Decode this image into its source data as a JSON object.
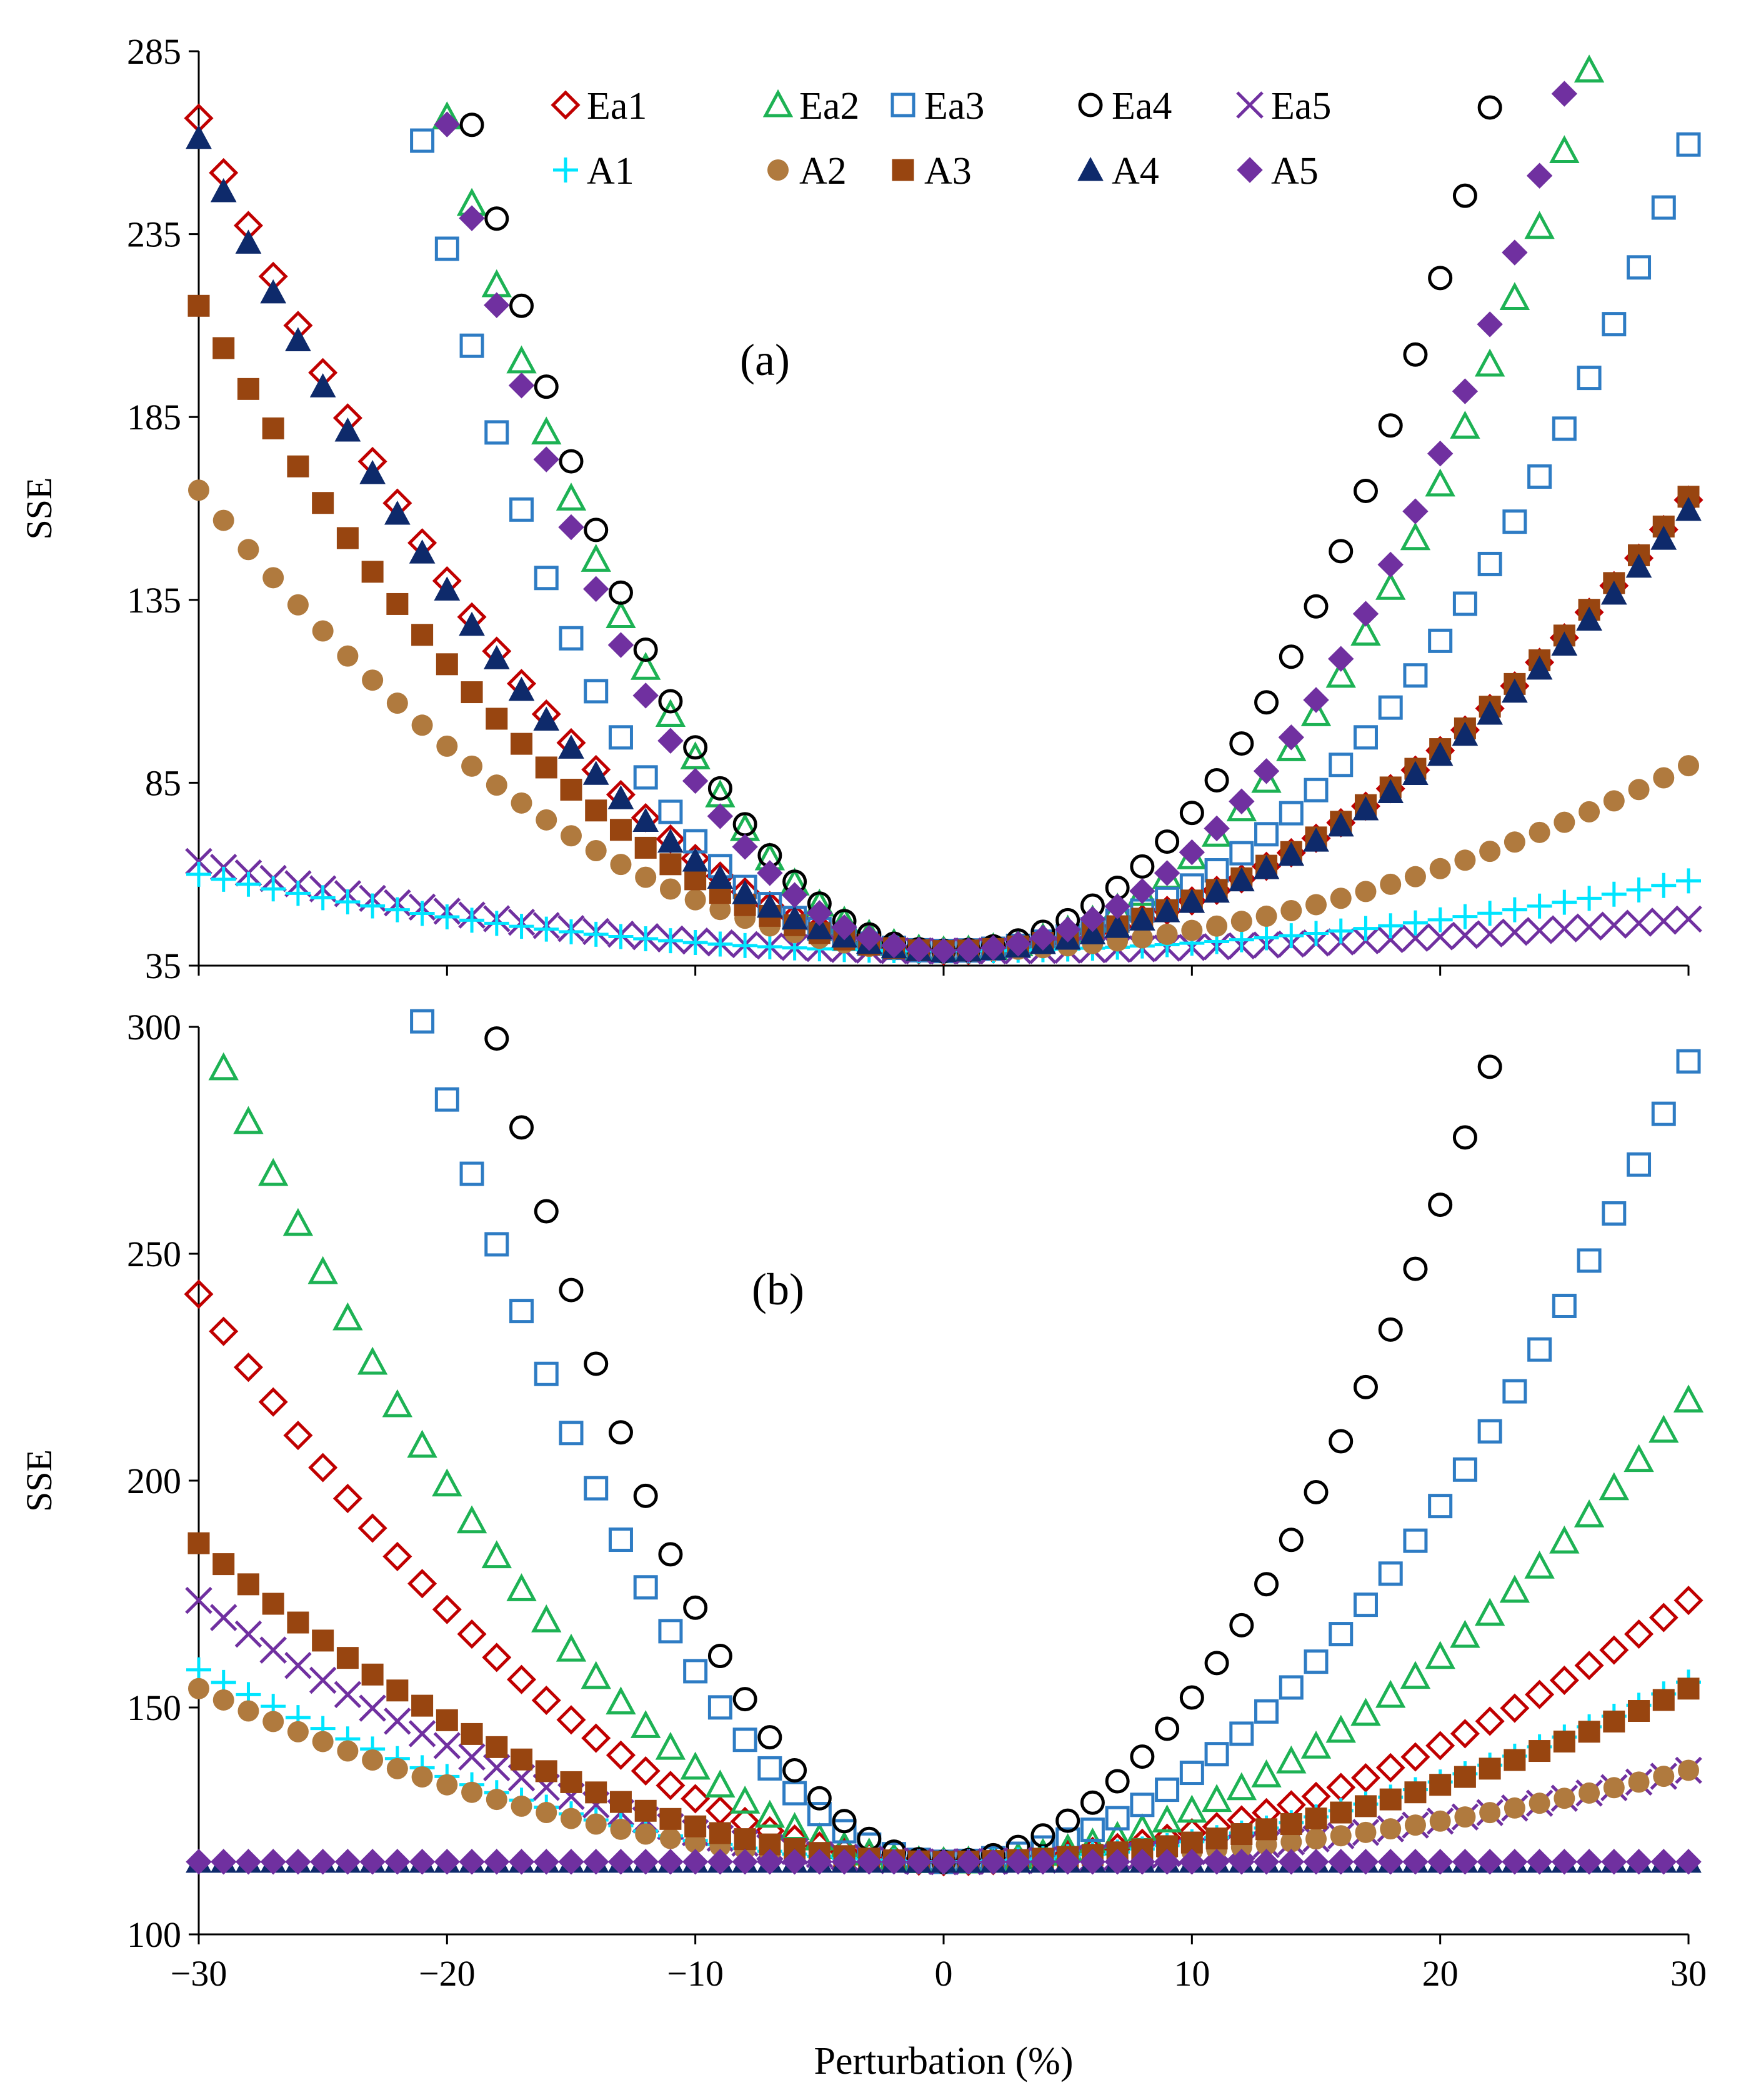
{
  "chart_data": [
    {
      "type": "scatter",
      "panel_label": "(a)",
      "xlabel": "",
      "ylabel": "SSE",
      "xlim": [
        -30,
        30
      ],
      "ylim": [
        35,
        285
      ],
      "y_ticks": [
        "35",
        "85",
        "135",
        "185",
        "235",
        "285"
      ],
      "x_ticks": [
        "",
        "",
        "",
        "",
        "",
        "",
        ""
      ],
      "legend": {
        "position": "top",
        "entries": [
          "Ea1",
          "Ea2",
          "Ea3",
          "Ea4",
          "Ea5",
          "A1",
          "A2",
          "A3",
          "A4",
          "A5"
        ]
      },
      "series": [
        {
          "name": "Ea1",
          "marker": "diamond-open",
          "color": "#C00000",
          "curve": {
            "left": [
              0.253,
              0.0,
              0.0
            ],
            "right": [
              0.137,
              0.0,
              0.0
            ]
          }
        },
        {
          "name": "Ea2",
          "marker": "triangle-open",
          "color": "#1DB254",
          "curve": {
            "left": [
              0.49,
              0.004,
              0.0
            ],
            "right": [
              0.195,
              0.0062,
              0.0
            ]
          }
        },
        {
          "name": "Ea3",
          "marker": "square-open",
          "color": "#2E7CC4",
          "curve": {
            "left": [
              0.2,
              0.006,
              0.0004
            ],
            "right": [
              0.146,
              0.0033,
              0.0
            ]
          }
        },
        {
          "name": "Ea4",
          "marker": "circle-open",
          "color": "#000000",
          "curve": {
            "left": [
              0.48,
              0.00767,
              0.0
            ],
            "right": [
              0.295,
              0.00825,
              0.0
            ]
          }
        },
        {
          "name": "Ea5",
          "marker": "x",
          "color": "#7030A0",
          "curve": {
            "left": [
              0.0272,
              0.0,
              0.0
            ],
            "right": [
              0.0097,
              0.0,
              0.0
            ]
          }
        },
        {
          "name": "A1",
          "marker": "plus",
          "color": "#00E5FF",
          "curve": {
            "left": [
              0.0233,
              0.0,
              0.0
            ],
            "right": [
              0.0213,
              0.0,
              0.0
            ]
          }
        },
        {
          "name": "A2",
          "marker": "circle-filled",
          "color": "#B07A3E",
          "curve": {
            "left": [
              0.14,
              0.0,
              0.0
            ],
            "right": [
              0.0563,
              0.0,
              0.0
            ]
          }
        },
        {
          "name": "A3",
          "marker": "square-filled",
          "color": "#984510",
          "curve": {
            "left": [
              0.196,
              0.0,
              0.0
            ],
            "right": [
              0.138,
              0.0,
              0.0
            ]
          }
        },
        {
          "name": "A4",
          "marker": "triangle-filled",
          "color": "#0E2A6B",
          "curve": {
            "left": [
              0.247,
              0.0,
              0.0
            ],
            "right": [
              0.134,
              0.0,
              0.0
            ]
          }
        },
        {
          "name": "A5",
          "marker": "diamond-filled",
          "color": "#7030A0",
          "curve": {
            "left": [
              0.365,
              0.01,
              0.0
            ],
            "right": [
              0.2,
              0.007,
              0.0
            ]
          }
        }
      ],
      "curve_form": "SSE = y_min + a*x^2 + b*|x|^3 + c*x^4, evaluated at x = -30..30 step 1",
      "y_min": 39
    },
    {
      "type": "scatter",
      "panel_label": "(b)",
      "xlabel": "Perturbation (%)",
      "ylabel": "SSE",
      "xlim": [
        -30,
        30
      ],
      "ylim": [
        100,
        300
      ],
      "y_ticks": [
        "100",
        "150",
        "200",
        "250",
        "300"
      ],
      "x_ticks": [
        "−30",
        "−20",
        "−10",
        "0",
        "10",
        "20",
        "30"
      ],
      "series": [
        {
          "name": "Ea1",
          "marker": "diamond-open",
          "color": "#C00000",
          "curve": {
            "left": [
              0.139,
              0.0,
              0.0
            ],
            "right": [
              0.064,
              0.0,
              0.0
            ]
          }
        },
        {
          "name": "Ea2",
          "marker": "triangle-open",
          "color": "#1DB254",
          "curve": {
            "left": [
              0.208,
              0.0,
              0.0
            ],
            "right": [
              0.113,
              0.0,
              0.0
            ]
          }
        },
        {
          "name": "Ea3",
          "marker": "square-open",
          "color": "#2E7CC4",
          "curve": {
            "left": [
              0.42,
              0.0,
              0.0
            ],
            "right": [
              0.196,
              0.0,
              0.0
            ]
          }
        },
        {
          "name": "Ea4",
          "marker": "circle-open",
          "color": "#000000",
          "curve": {
            "left": [
              0.56,
              0.0,
              0.0
            ],
            "right": [
              0.362,
              0.0,
              0.0
            ]
          }
        },
        {
          "name": "Ea5",
          "marker": "x",
          "color": "#7030A0",
          "curve": {
            "left": [
              0.064,
              0.0,
              0.0
            ],
            "right": [
              0.0224,
              0.0,
              0.0
            ]
          }
        },
        {
          "name": "A1",
          "marker": "plus",
          "color": "#00E5FF",
          "curve": {
            "left": [
              0.047,
              0.0,
              0.0
            ],
            "right": [
              0.044,
              0.0,
              0.0
            ]
          }
        },
        {
          "name": "A2",
          "marker": "circle-filled",
          "color": "#B07A3E",
          "curve": {
            "left": [
              0.0424,
              0.0,
              0.0
            ],
            "right": [
              0.0224,
              0.0,
              0.0
            ]
          }
        },
        {
          "name": "A3",
          "marker": "square-filled",
          "color": "#984510",
          "curve": {
            "left": [
              0.078,
              0.0,
              0.0
            ],
            "right": [
              0.0424,
              0.0,
              0.0
            ]
          }
        },
        {
          "name": "A4",
          "marker": "triangle-filled",
          "color": "#0E2A6B",
          "curve": {
            "left": [
              0.0,
              0.0,
              0.0
            ],
            "right": [
              0.0,
              0.0,
              0.0
            ]
          }
        },
        {
          "name": "A5",
          "marker": "diamond-filled",
          "color": "#7030A0",
          "curve": {
            "left": [
              0.0,
              0.0,
              0.0
            ],
            "right": [
              0.0,
              0.0,
              0.0
            ]
          }
        }
      ],
      "curve_form": "SSE = y_min + a*x^2 + b*|x|^3 + c*x^4, evaluated at x = -30..30 step 1",
      "y_min": 116
    }
  ]
}
